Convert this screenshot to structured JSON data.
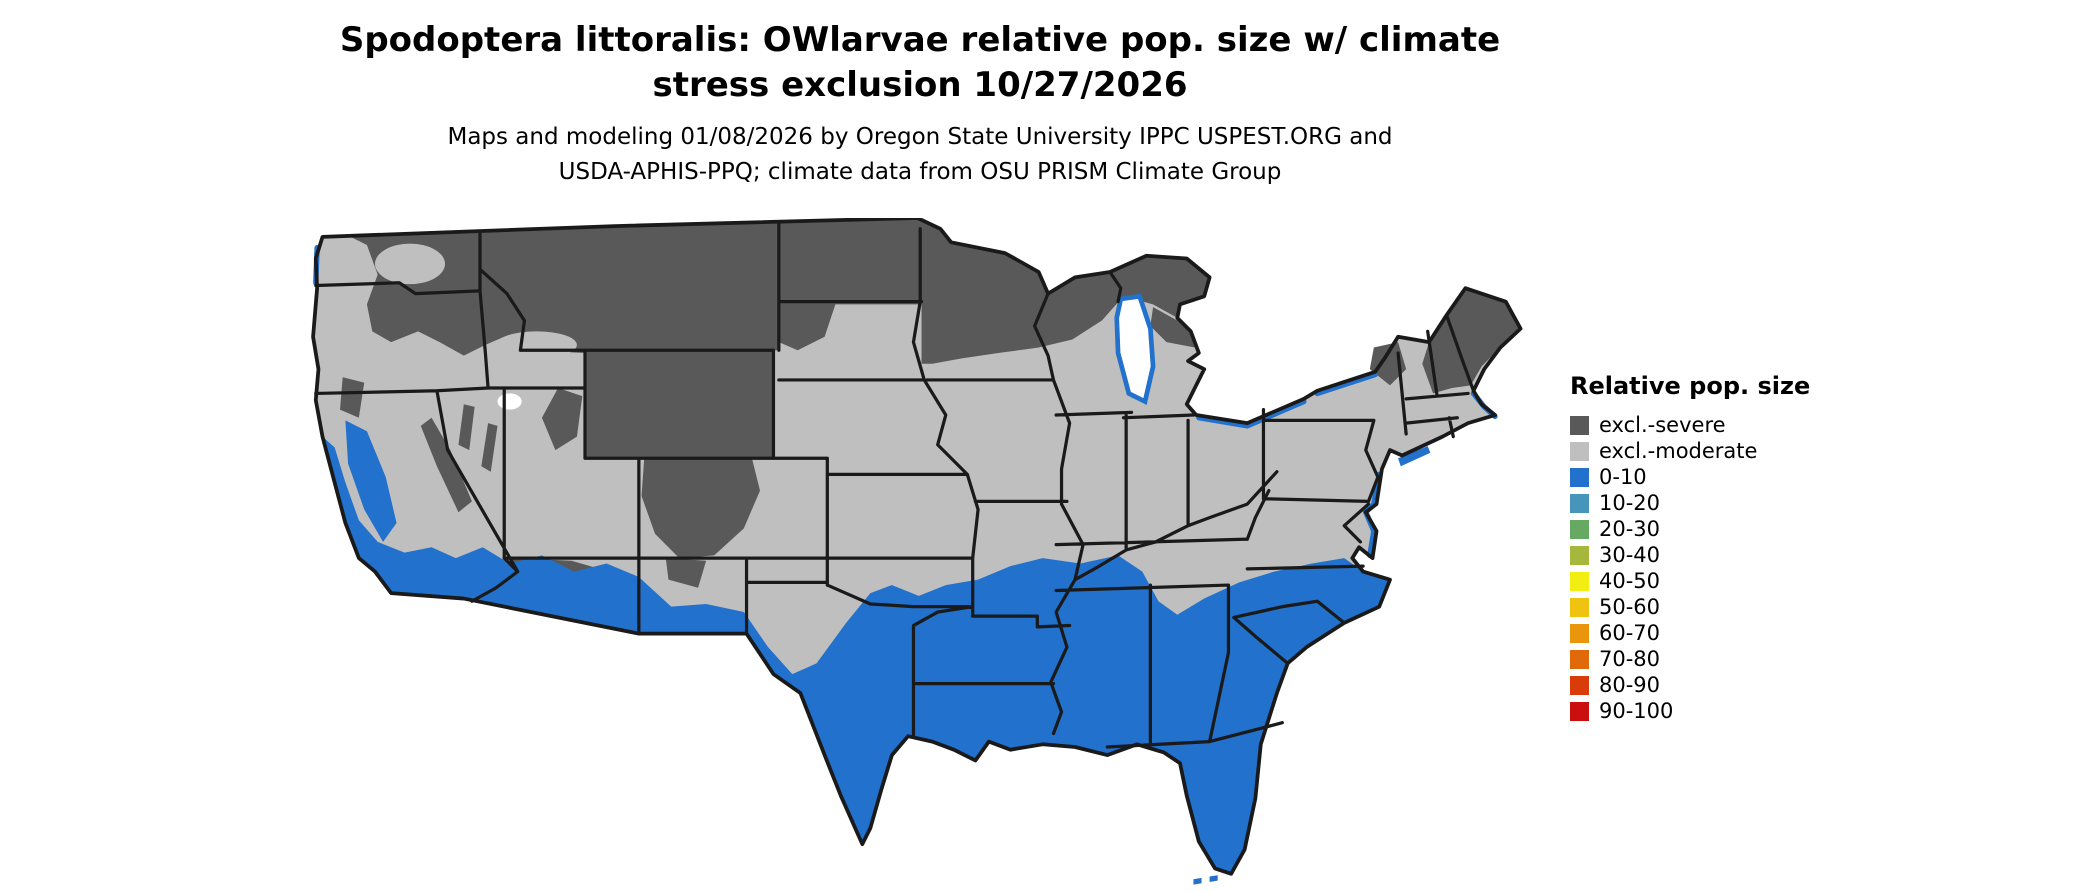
{
  "title": {
    "line1": "Spodoptera littoralis: OWlarvae relative pop. size w/ climate",
    "line2": "stress exclusion 10/27/2026"
  },
  "subtitle": {
    "line1": "Maps and modeling 01/08/2026 by Oregon State University IPPC USPEST.ORG and",
    "line2": "USDA-APHIS-PPQ; climate data from OSU PRISM Climate Group"
  },
  "legend": {
    "title": "Relative pop. size",
    "entries": [
      {
        "label": "excl.-severe",
        "color": "#595959"
      },
      {
        "label": "excl.-moderate",
        "color": "#bfbfbf"
      },
      {
        "label": "0-10",
        "color": "#2171cd"
      },
      {
        "label": "10-20",
        "color": "#4695bb"
      },
      {
        "label": "20-30",
        "color": "#66a963"
      },
      {
        "label": "30-40",
        "color": "#a6b73c"
      },
      {
        "label": "40-50",
        "color": "#f2ee11"
      },
      {
        "label": "50-60",
        "color": "#efc310"
      },
      {
        "label": "60-70",
        "color": "#ea960d"
      },
      {
        "label": "70-80",
        "color": "#e06a0a"
      },
      {
        "label": "80-90",
        "color": "#d93c08"
      },
      {
        "label": "90-100",
        "color": "#cb0f0f"
      }
    ]
  },
  "map": {
    "border_color": "#1a1a1a",
    "water_color": "#ffffff"
  }
}
